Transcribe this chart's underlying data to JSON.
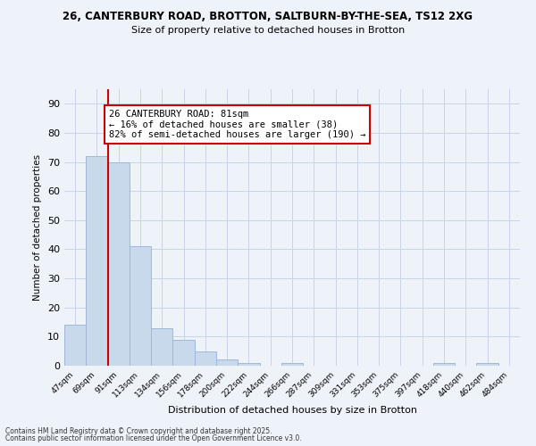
{
  "title1": "26, CANTERBURY ROAD, BROTTON, SALTBURN-BY-THE-SEA, TS12 2XG",
  "title2": "Size of property relative to detached houses in Brotton",
  "xlabel": "Distribution of detached houses by size in Brotton",
  "ylabel": "Number of detached properties",
  "bin_labels": [
    "47sqm",
    "69sqm",
    "91sqm",
    "113sqm",
    "134sqm",
    "156sqm",
    "178sqm",
    "200sqm",
    "222sqm",
    "244sqm",
    "266sqm",
    "287sqm",
    "309sqm",
    "331sqm",
    "353sqm",
    "375sqm",
    "397sqm",
    "418sqm",
    "440sqm",
    "462sqm",
    "484sqm"
  ],
  "bar_heights": [
    14,
    72,
    70,
    41,
    13,
    9,
    5,
    2,
    1,
    0,
    1,
    0,
    0,
    0,
    0,
    0,
    0,
    1,
    0,
    1,
    0
  ],
  "bar_color": "#c9d9ec",
  "bar_edge_color": "#a0b8d8",
  "vline_x": 1.5,
  "vline_color": "#cc0000",
  "annotation_text": "26 CANTERBURY ROAD: 81sqm\n← 16% of detached houses are smaller (38)\n82% of semi-detached houses are larger (190) →",
  "annotation_box_color": "#ffffff",
  "annotation_box_edge": "#cc0000",
  "annotation_fontsize": 7.5,
  "grid_color": "#c8d4e8",
  "footer1": "Contains HM Land Registry data © Crown copyright and database right 2025.",
  "footer2": "Contains public sector information licensed under the Open Government Licence v3.0.",
  "ylim": [
    0,
    95
  ],
  "yticks": [
    0,
    10,
    20,
    30,
    40,
    50,
    60,
    70,
    80,
    90
  ],
  "bg_color": "#eef2f9"
}
